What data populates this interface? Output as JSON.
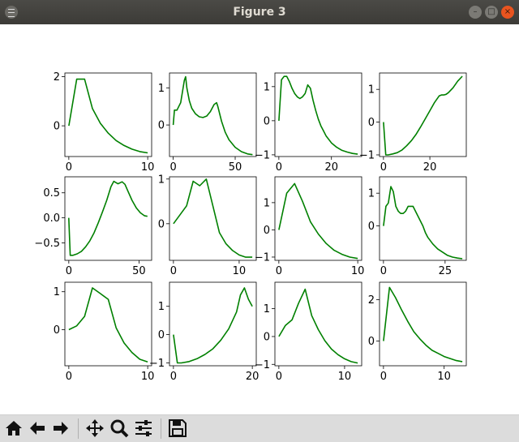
{
  "window": {
    "title": "Figure 3"
  },
  "toolbar": {
    "buttons": [
      {
        "name": "home-icon"
      },
      {
        "name": "back-arrow-icon"
      },
      {
        "name": "forward-arrow-icon"
      },
      {
        "name": "pan-icon"
      },
      {
        "name": "zoom-icon"
      },
      {
        "name": "configure-subplots-icon"
      },
      {
        "name": "save-icon"
      }
    ]
  },
  "colors": {
    "line": "#008000"
  },
  "chart_data": [
    {
      "type": "line",
      "x": [
        0,
        1,
        2,
        3,
        4,
        5,
        6,
        7,
        8,
        9,
        10
      ],
      "y": [
        0.0,
        1.9,
        1.9,
        0.7,
        0.1,
        -0.3,
        -0.6,
        -0.8,
        -0.95,
        -1.05,
        -1.1
      ],
      "xlim": [
        -0.5,
        10.5
      ],
      "ylim": [
        -1.25,
        2.15
      ],
      "xticks": [
        0,
        10
      ],
      "yticks": [
        0,
        2
      ]
    },
    {
      "type": "line",
      "x": [
        0,
        1,
        3,
        6,
        9,
        10,
        11,
        13,
        15,
        18,
        21,
        24,
        27,
        30,
        33,
        35,
        36,
        39,
        42,
        45,
        50,
        55,
        60,
        64
      ],
      "y": [
        0.0,
        0.4,
        0.4,
        0.6,
        1.2,
        1.3,
        1.0,
        0.65,
        0.45,
        0.3,
        0.22,
        0.2,
        0.24,
        0.36,
        0.55,
        0.6,
        0.5,
        0.1,
        -0.2,
        -0.4,
        -0.6,
        -0.72,
        -0.78,
        -0.8
      ],
      "xlim": [
        -3,
        67
      ],
      "ylim": [
        -0.85,
        1.4
      ],
      "xticks": [
        0,
        50
      ],
      "yticks": [
        0,
        1
      ]
    },
    {
      "type": "line",
      "x": [
        0,
        1,
        2,
        3,
        4,
        5,
        6,
        7,
        8,
        9,
        10,
        11,
        12,
        13,
        14,
        15,
        16,
        17,
        18,
        19,
        20,
        22,
        24,
        26,
        28,
        30
      ],
      "y": [
        0.0,
        1.2,
        1.3,
        1.3,
        1.15,
        0.95,
        0.8,
        0.7,
        0.65,
        0.7,
        0.8,
        1.05,
        0.95,
        0.6,
        0.3,
        0.05,
        -0.15,
        -0.3,
        -0.45,
        -0.55,
        -0.65,
        -0.78,
        -0.87,
        -0.92,
        -0.96,
        -0.98
      ],
      "xlim": [
        -1.5,
        31.5
      ],
      "ylim": [
        -1.05,
        1.4
      ],
      "xticks": [
        0,
        20
      ],
      "yticks": [
        -1,
        0,
        1
      ]
    },
    {
      "type": "line",
      "x": [
        0,
        1,
        2,
        4,
        6,
        8,
        10,
        12,
        14,
        16,
        18,
        20,
        22,
        24,
        25,
        26,
        27,
        28,
        30,
        32,
        34
      ],
      "y": [
        0.0,
        -1.0,
        -1.0,
        -0.97,
        -0.93,
        -0.85,
        -0.72,
        -0.57,
        -0.38,
        -0.15,
        0.1,
        0.35,
        0.6,
        0.8,
        0.83,
        0.83,
        0.85,
        0.9,
        1.05,
        1.25,
        1.4
      ],
      "xlim": [
        -1.7,
        35.7
      ],
      "ylim": [
        -1.05,
        1.5
      ],
      "xticks": [
        0,
        20
      ],
      "yticks": [
        -1,
        0,
        1
      ]
    },
    {
      "type": "line",
      "x": [
        0,
        1,
        3,
        6,
        9,
        12,
        15,
        18,
        21,
        24,
        27,
        30,
        32,
        35,
        38,
        40,
        42,
        45,
        48,
        51,
        54,
        56
      ],
      "y": [
        0.0,
        -0.75,
        -0.75,
        -0.72,
        -0.67,
        -0.58,
        -0.46,
        -0.3,
        -0.1,
        0.12,
        0.35,
        0.62,
        0.73,
        0.68,
        0.72,
        0.67,
        0.54,
        0.35,
        0.2,
        0.1,
        0.04,
        0.03
      ],
      "xlim": [
        -2.8,
        59
      ],
      "ylim": [
        -0.85,
        0.82
      ],
      "xticks": [
        0,
        50
      ],
      "yticks": [
        -0.5,
        0.0,
        0.5
      ]
    },
    {
      "type": "line",
      "x": [
        0,
        1,
        2,
        3,
        4,
        5,
        6,
        7,
        8,
        9,
        10,
        11,
        12
      ],
      "y": [
        0.0,
        0.2,
        0.4,
        0.95,
        0.85,
        1.0,
        0.4,
        -0.2,
        -0.45,
        -0.6,
        -0.7,
        -0.75,
        -0.75
      ],
      "xlim": [
        -0.6,
        12.6
      ],
      "ylim": [
        -0.82,
        1.05
      ],
      "xticks": [
        0,
        10
      ],
      "yticks": [
        0,
        1
      ]
    },
    {
      "type": "line",
      "x": [
        0,
        1,
        2,
        3,
        4,
        5,
        6,
        7,
        8,
        9,
        10
      ],
      "y": [
        0.0,
        1.35,
        1.7,
        1.05,
        0.3,
        -0.15,
        -0.5,
        -0.75,
        -0.9,
        -1.0,
        -1.05
      ],
      "xlim": [
        -0.5,
        10.5
      ],
      "ylim": [
        -1.12,
        1.95
      ],
      "xticks": [
        0,
        10
      ],
      "yticks": [
        -1,
        0,
        1
      ]
    },
    {
      "type": "line",
      "x": [
        0,
        1,
        2,
        3,
        4,
        5,
        6,
        7,
        8,
        9,
        10,
        12,
        14,
        16,
        17,
        18,
        20,
        22,
        24,
        26,
        28,
        30,
        32
      ],
      "y": [
        0.0,
        0.6,
        0.7,
        1.2,
        1.05,
        0.6,
        0.45,
        0.38,
        0.38,
        0.45,
        0.6,
        0.6,
        0.3,
        0.0,
        -0.2,
        -0.35,
        -0.55,
        -0.7,
        -0.8,
        -0.9,
        -0.95,
        -0.98,
        -1.0
      ],
      "xlim": [
        -1.6,
        33.6
      ],
      "ylim": [
        -1.05,
        1.5
      ],
      "xticks": [
        0,
        25
      ],
      "yticks": [
        0,
        1
      ]
    },
    {
      "type": "line",
      "x": [
        0,
        1,
        2,
        3,
        4,
        5,
        6,
        7,
        8,
        9,
        10
      ],
      "y": [
        0.0,
        0.1,
        0.35,
        1.1,
        0.95,
        0.8,
        0.05,
        -0.35,
        -0.6,
        -0.78,
        -0.85
      ],
      "xlim": [
        -0.5,
        10.5
      ],
      "ylim": [
        -0.95,
        1.25
      ],
      "xticks": [
        0,
        10
      ],
      "yticks": [
        0,
        1
      ]
    },
    {
      "type": "line",
      "x": [
        0,
        1,
        2,
        4,
        6,
        8,
        10,
        12,
        14,
        16,
        17,
        18,
        19,
        20
      ],
      "y": [
        0.0,
        -1.0,
        -1.0,
        -0.95,
        -0.85,
        -0.7,
        -0.5,
        -0.2,
        0.2,
        0.8,
        1.4,
        1.65,
        1.25,
        1.0
      ],
      "xlim": [
        -1,
        21
      ],
      "ylim": [
        -1.1,
        1.85
      ],
      "xticks": [
        0,
        20
      ],
      "yticks": [
        -1,
        0,
        1
      ]
    },
    {
      "type": "line",
      "x": [
        0,
        1,
        2,
        3,
        4,
        5,
        6,
        7,
        8,
        9,
        10,
        11,
        12
      ],
      "y": [
        0.0,
        0.4,
        0.6,
        1.2,
        1.7,
        0.75,
        0.25,
        -0.15,
        -0.45,
        -0.65,
        -0.8,
        -0.9,
        -0.95
      ],
      "xlim": [
        -0.6,
        12.6
      ],
      "ylim": [
        -1.05,
        1.95
      ],
      "xticks": [
        0,
        10
      ],
      "yticks": [
        -1,
        0,
        1
      ]
    },
    {
      "type": "line",
      "x": [
        0,
        1,
        2,
        3,
        4,
        5,
        6,
        7,
        8,
        9,
        10,
        11,
        12,
        13
      ],
      "y": [
        0.0,
        2.6,
        2.1,
        1.5,
        0.95,
        0.45,
        0.1,
        -0.2,
        -0.45,
        -0.6,
        -0.75,
        -0.85,
        -0.95,
        -1.0
      ],
      "xlim": [
        -0.65,
        13.65
      ],
      "ylim": [
        -1.2,
        2.85
      ],
      "xticks": [
        0,
        10
      ],
      "yticks": [
        0,
        2
      ]
    }
  ]
}
